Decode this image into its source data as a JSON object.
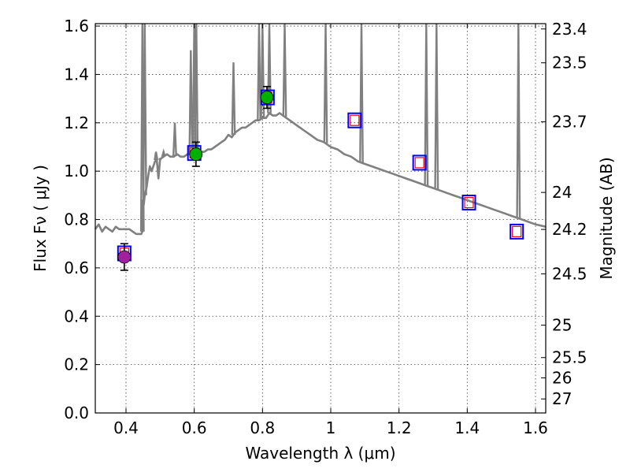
{
  "chart_data": {
    "type": "scatter",
    "title": "",
    "xlabel": "Wavelength  λ (μm)",
    "ylabel": "Flux  Fν  ( μJy )",
    "ylabel_right": "Magnitude (AB)",
    "xlim": [
      0.31,
      1.63
    ],
    "ylim": [
      0.0,
      1.61
    ],
    "x_ticks": [
      0.4,
      0.6,
      0.8,
      1.0,
      1.2,
      1.4,
      1.6
    ],
    "x_tick_labels": [
      "0.4",
      "0.6",
      "0.8",
      "1",
      "1.2",
      "1.4",
      "1.6"
    ],
    "y_ticks": [
      0.0,
      0.2,
      0.4,
      0.6,
      0.8,
      1.0,
      1.2,
      1.4,
      1.6
    ],
    "y_tick_labels": [
      "0.0",
      "0.2",
      "0.4",
      "0.6",
      "0.8",
      "1.0",
      "1.2",
      "1.4",
      "1.6"
    ],
    "right_ticks": [
      {
        "label": "23.4",
        "flux": 1.588
      },
      {
        "label": "23.5",
        "flux": 1.448
      },
      {
        "label": "23.7",
        "flux": 1.204
      },
      {
        "label": "24",
        "flux": 0.912
      },
      {
        "label": "24.2",
        "flux": 0.759
      },
      {
        "label": "24.5",
        "flux": 0.575
      },
      {
        "label": "25",
        "flux": 0.363
      },
      {
        "label": "25.5",
        "flux": 0.229
      },
      {
        "label": "26",
        "flux": 0.145
      },
      {
        "label": "27",
        "flux": 0.058
      }
    ],
    "grid": true,
    "colors": {
      "model": "#808080",
      "observed_blue_box": "#0000ff",
      "observed_red_box": "#ff0000",
      "detection_purple": "#a020a0",
      "detection_green": "#00b000",
      "errorbar": "#000000"
    },
    "series": [
      {
        "name": "model spectrum",
        "kind": "line",
        "x": [
          0.31,
          0.32,
          0.33,
          0.34,
          0.35,
          0.36,
          0.37,
          0.38,
          0.39,
          0.4,
          0.41,
          0.42,
          0.43,
          0.44,
          0.445,
          0.448,
          0.45,
          0.452,
          0.455,
          0.46,
          0.465,
          0.47,
          0.475,
          0.48,
          0.485,
          0.49,
          0.495,
          0.5,
          0.51,
          0.52,
          0.53,
          0.54,
          0.55,
          0.56,
          0.57,
          0.58,
          0.59,
          0.6,
          0.61,
          0.62,
          0.63,
          0.64,
          0.65,
          0.66,
          0.67,
          0.68,
          0.69,
          0.7,
          0.71,
          0.72,
          0.73,
          0.74,
          0.75,
          0.76,
          0.77,
          0.78,
          0.79,
          0.8,
          0.81,
          0.82,
          0.83,
          0.84,
          0.85,
          0.86,
          0.87,
          0.88,
          0.89,
          0.9,
          0.92,
          0.94,
          0.96,
          0.98,
          1.0,
          1.02,
          1.04,
          1.06,
          1.08,
          1.1,
          1.12,
          1.14,
          1.16,
          1.18,
          1.2,
          1.22,
          1.24,
          1.26,
          1.28,
          1.3,
          1.32,
          1.34,
          1.36,
          1.38,
          1.4,
          1.42,
          1.44,
          1.46,
          1.48,
          1.5,
          1.52,
          1.54,
          1.56,
          1.58,
          1.6,
          1.63
        ],
        "y": [
          0.76,
          0.78,
          0.75,
          0.77,
          0.76,
          0.75,
          0.77,
          0.76,
          0.76,
          0.76,
          0.76,
          0.75,
          0.74,
          0.74,
          0.74,
          0.75,
          0.88,
          0.86,
          0.9,
          0.93,
          0.98,
          1.02,
          1.0,
          1.02,
          1.04,
          1.05,
          0.97,
          1.05,
          1.06,
          1.07,
          1.06,
          1.06,
          1.07,
          1.06,
          1.06,
          1.07,
          1.07,
          1.08,
          1.07,
          1.08,
          1.08,
          1.09,
          1.09,
          1.1,
          1.11,
          1.12,
          1.13,
          1.15,
          1.14,
          1.16,
          1.17,
          1.18,
          1.18,
          1.19,
          1.2,
          1.21,
          1.21,
          1.22,
          1.22,
          1.24,
          1.23,
          1.23,
          1.24,
          1.23,
          1.22,
          1.21,
          1.2,
          1.19,
          1.17,
          1.15,
          1.13,
          1.12,
          1.1,
          1.09,
          1.07,
          1.06,
          1.04,
          1.03,
          1.02,
          1.01,
          1.0,
          0.99,
          0.98,
          0.97,
          0.96,
          0.95,
          0.94,
          0.93,
          0.92,
          0.91,
          0.9,
          0.89,
          0.88,
          0.87,
          0.86,
          0.85,
          0.84,
          0.83,
          0.82,
          0.81,
          0.8,
          0.79,
          0.78,
          0.77
        ]
      },
      {
        "name": "emission lines",
        "kind": "spikes",
        "x": [
          0.448,
          0.455,
          0.488,
          0.5,
          0.51,
          0.543,
          0.59,
          0.6,
          0.606,
          0.715,
          0.79,
          0.8,
          0.82,
          0.865,
          0.985,
          1.09,
          1.28,
          1.31,
          1.55
        ],
        "y": [
          1.61,
          1.61,
          1.08,
          1.05,
          1.08,
          1.2,
          1.5,
          1.61,
          1.61,
          1.45,
          1.61,
          1.61,
          1.61,
          1.61,
          1.61,
          1.61,
          1.61,
          1.61,
          1.61
        ]
      },
      {
        "name": "observed boxes",
        "kind": "marker-square",
        "x": [
          0.395,
          0.6,
          0.815,
          1.07,
          1.26,
          1.405,
          1.545
        ],
        "y": [
          0.66,
          1.075,
          1.305,
          1.21,
          1.035,
          0.87,
          0.75
        ]
      },
      {
        "name": "detections",
        "kind": "marker-circle",
        "x": [
          0.395,
          0.605,
          0.813
        ],
        "y": [
          0.645,
          1.07,
          1.305
        ],
        "yerr": [
          0.055,
          0.05,
          0.045
        ],
        "colors": [
          "#a020a0",
          "#00b000",
          "#00b000"
        ]
      }
    ]
  }
}
